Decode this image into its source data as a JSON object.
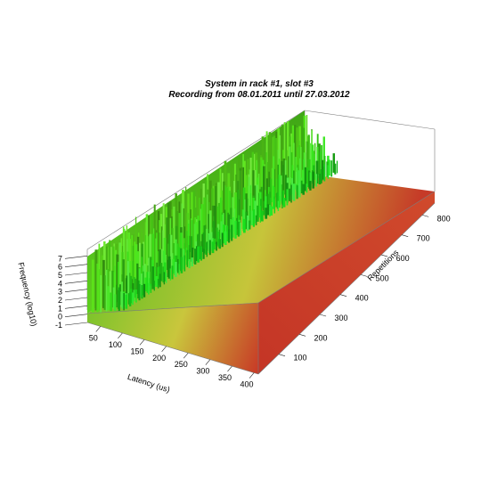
{
  "chart_data": {
    "type": "surface3d",
    "title": "System in rack #1, slot #3",
    "subtitle": "Recording from 08.01.2011 until 27.03.2012",
    "xlabel": "Latency (us)",
    "ylabel": "Repetitions",
    "zlabel": "Frequency (log10)",
    "x_ticks": [
      50,
      100,
      150,
      200,
      250,
      300,
      350,
      400
    ],
    "y_ticks": [
      100,
      200,
      300,
      400,
      500,
      600,
      700,
      800
    ],
    "z_ticks": [
      -1,
      0,
      1,
      2,
      3,
      4,
      5,
      6,
      7
    ],
    "xlim": [
      20,
      410
    ],
    "ylim": [
      0,
      860
    ],
    "zlim": [
      -1,
      8
    ],
    "series": [
      {
        "latency": 30,
        "frequency_range": [
          4.5,
          6.8
        ]
      },
      {
        "latency": 40,
        "frequency_range": [
          3.5,
          6.5
        ]
      },
      {
        "latency": 50,
        "frequency_range": [
          2.5,
          5.5
        ]
      },
      {
        "latency": 60,
        "frequency_range": [
          1.5,
          4.5
        ]
      },
      {
        "latency": 70,
        "frequency_range": [
          1.0,
          3.5
        ]
      },
      {
        "latency": 80,
        "frequency_range": [
          0.5,
          2.5
        ]
      },
      {
        "latency": 90,
        "frequency_range": [
          0.2,
          1.8
        ]
      },
      {
        "latency": 100,
        "frequency_range": [
          0.0,
          1.0
        ]
      }
    ],
    "colors": {
      "low": "#c43a2a",
      "mid": "#c8c23c",
      "high": "#3fd11f",
      "edge": "#7a7a7a"
    }
  }
}
